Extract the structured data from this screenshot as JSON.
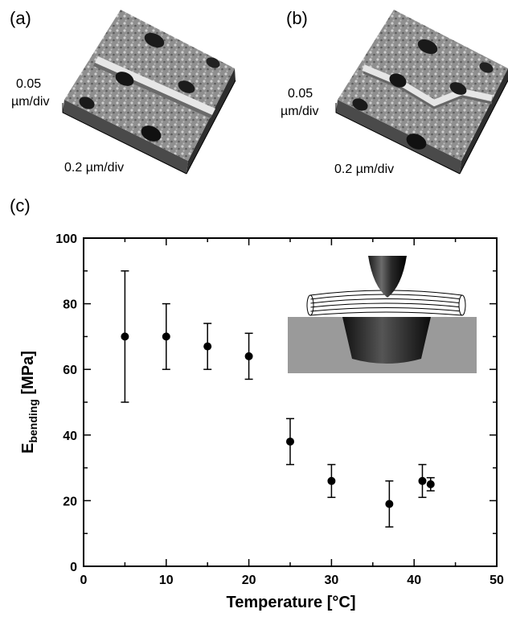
{
  "panels": {
    "a": {
      "label": "(a)",
      "scale_z": [
        "0.05",
        "µm/div"
      ],
      "scale_xy": "0.2 µm/div"
    },
    "b": {
      "label": "(b)",
      "scale_z": [
        "0.05",
        "µm/div"
      ],
      "scale_xy": "0.2 µm/div"
    },
    "c": {
      "label": "(c)"
    }
  },
  "chart_data": {
    "type": "scatter",
    "title": "",
    "xlabel": "Temperature [°C]",
    "ylabel_main": "E",
    "ylabel_sub": "bending",
    "ylabel_unit": " [MPa]",
    "xlim": [
      0,
      50
    ],
    "ylim": [
      0,
      100
    ],
    "xticks": [
      0,
      10,
      20,
      30,
      40,
      50
    ],
    "yticks": [
      0,
      20,
      40,
      60,
      80,
      100
    ],
    "grid": false,
    "error_bars": true,
    "points": [
      {
        "x": 5,
        "y": 70,
        "err": 20
      },
      {
        "x": 10,
        "y": 70,
        "err": 10
      },
      {
        "x": 15,
        "y": 67,
        "err": 7
      },
      {
        "x": 20,
        "y": 64,
        "err": 7
      },
      {
        "x": 25,
        "y": 38,
        "err": 7
      },
      {
        "x": 30,
        "y": 26,
        "err": 5
      },
      {
        "x": 37,
        "y": 19,
        "err": 7
      },
      {
        "x": 41,
        "y": 26,
        "err": 5
      },
      {
        "x": 42,
        "y": 25,
        "err": 2
      }
    ],
    "inset": "schematic of AFM tip bending a fibril bundle suspended over a well"
  },
  "colors": {
    "ink": "#000000",
    "substrate": "#9a9a9a",
    "afm_surface": "#8e8e8e"
  }
}
